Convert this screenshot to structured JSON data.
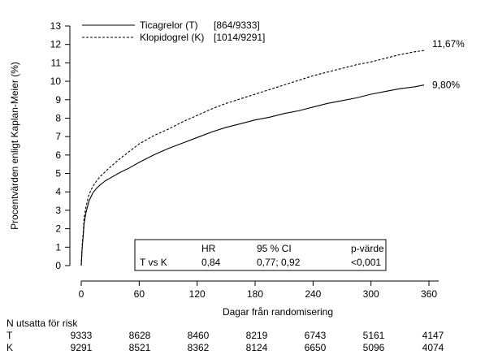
{
  "chart_data": {
    "type": "line",
    "title": "",
    "xlabel": "Dagar från randomisering",
    "ylabel": "Procentvärden enligt Kaplan-Meier (%)",
    "xlim": [
      0,
      360
    ],
    "ylim": [
      0,
      13
    ],
    "xticks": [
      0,
      60,
      120,
      180,
      240,
      300,
      360
    ],
    "yticks": [
      0,
      1,
      2,
      3,
      4,
      5,
      6,
      7,
      8,
      9,
      10,
      11,
      12,
      13
    ],
    "grid": false,
    "legend_position": "top-left",
    "series": [
      {
        "name": "Ticagrelor (T)",
        "count": "[864/9333]",
        "style": "solid",
        "end_label": "9,80%",
        "x": [
          0,
          1,
          2,
          3,
          5,
          8,
          12,
          16,
          20,
          25,
          30,
          40,
          50,
          60,
          75,
          90,
          105,
          120,
          135,
          150,
          165,
          180,
          195,
          210,
          225,
          240,
          255,
          270,
          285,
          300,
          315,
          330,
          345,
          355
        ],
        "y": [
          0,
          1.0,
          1.6,
          2.3,
          2.9,
          3.5,
          3.95,
          4.2,
          4.4,
          4.6,
          4.75,
          5.05,
          5.3,
          5.6,
          6.0,
          6.35,
          6.65,
          6.95,
          7.25,
          7.5,
          7.7,
          7.9,
          8.05,
          8.25,
          8.4,
          8.6,
          8.8,
          8.95,
          9.1,
          9.3,
          9.45,
          9.6,
          9.7,
          9.8
        ]
      },
      {
        "name": "Klopidogrel (K)",
        "count": "[1014/9291]",
        "style": "dashed",
        "end_label": "11,67%",
        "x": [
          0,
          1,
          2,
          3,
          5,
          8,
          12,
          16,
          20,
          25,
          30,
          40,
          50,
          60,
          75,
          90,
          105,
          120,
          135,
          150,
          165,
          180,
          195,
          210,
          225,
          240,
          255,
          270,
          285,
          300,
          315,
          330,
          345,
          355
        ],
        "y": [
          0,
          1.1,
          1.8,
          2.6,
          3.2,
          3.85,
          4.3,
          4.6,
          4.85,
          5.1,
          5.35,
          5.8,
          6.2,
          6.6,
          7.05,
          7.4,
          7.8,
          8.15,
          8.5,
          8.8,
          9.05,
          9.3,
          9.55,
          9.8,
          10.05,
          10.3,
          10.5,
          10.7,
          10.9,
          11.05,
          11.25,
          11.45,
          11.6,
          11.67
        ]
      }
    ],
    "stats_table": {
      "headers": [
        "",
        "HR",
        "95 % CI",
        "p-värde"
      ],
      "row": [
        "T vs K",
        "0,84",
        "0,77; 0,92",
        "<0,001"
      ]
    },
    "at_risk": {
      "title": "N utsatta för risk",
      "rows": [
        {
          "label": "T",
          "values": [
            "9333",
            "8628",
            "8460",
            "8219",
            "6743",
            "5161",
            "4147"
          ]
        },
        {
          "label": "K",
          "values": [
            "9291",
            "8521",
            "8362",
            "8124",
            "6650",
            "5096",
            "4074"
          ]
        }
      ]
    }
  }
}
